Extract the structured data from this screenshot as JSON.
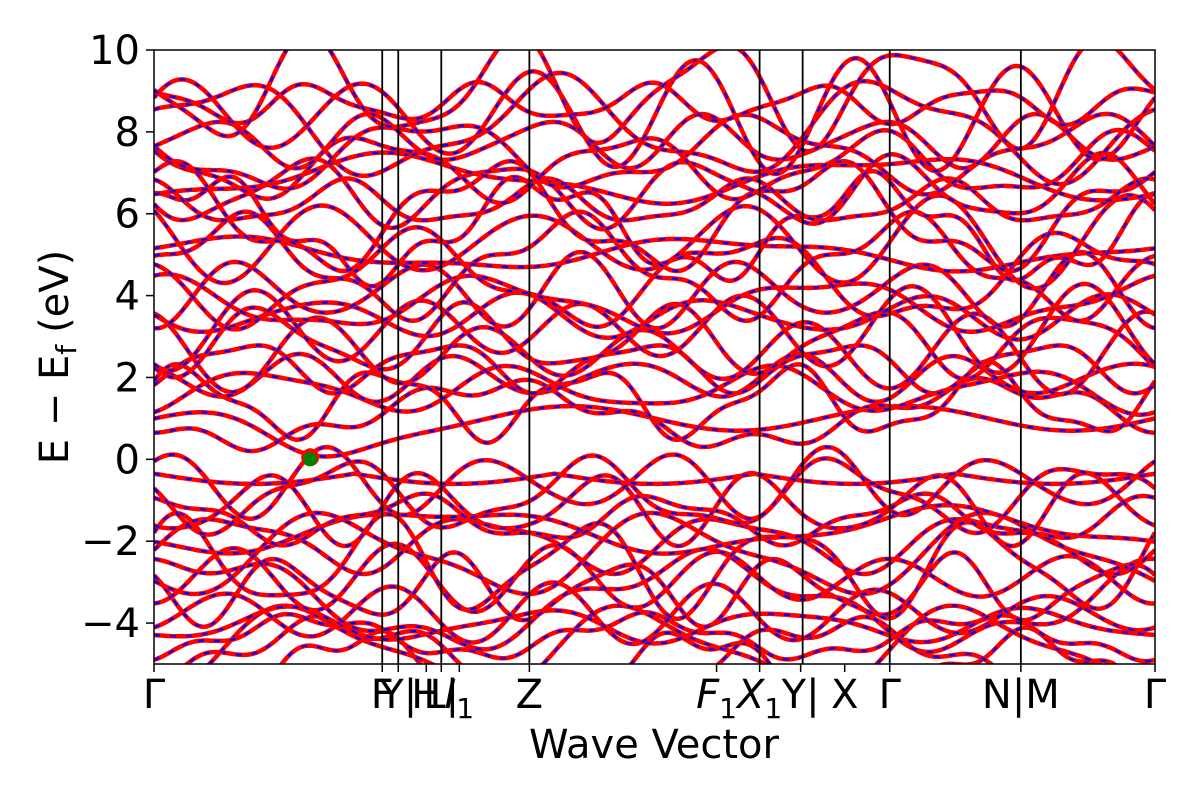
{
  "chart_data": {
    "type": "line",
    "title": "",
    "xlabel": "Wave Vector",
    "ylabel": "E − E_f (eV)",
    "ylabel_main": "E − E",
    "ylabel_sub": "f",
    "ylabel_unit": "(eV)",
    "ylim": [
      -5,
      10
    ],
    "yticks": [
      -4,
      -2,
      0,
      2,
      4,
      6,
      8,
      10
    ],
    "ytick_labels": [
      "−4",
      "−2",
      "0",
      "2",
      "4",
      "6",
      "8",
      "10"
    ],
    "x_range": [
      0,
      1
    ],
    "kpath": [
      {
        "pos": 0.0,
        "label": "Γ"
      },
      {
        "pos": 0.228,
        "label": "F"
      },
      {
        "pos": 0.244,
        "label": "Y|"
      },
      {
        "pos": 0.272,
        "label": "H"
      },
      {
        "pos": 0.287,
        "label": "L|"
      },
      {
        "pos": 0.305,
        "label": "I1"
      },
      {
        "pos": 0.375,
        "label": "Z"
      },
      {
        "pos": 0.562,
        "label": "F1"
      },
      {
        "pos": 0.605,
        "label": "X1"
      },
      {
        "pos": 0.646,
        "label": "Y|"
      },
      {
        "pos": 0.69,
        "label": "X"
      },
      {
        "pos": 0.735,
        "label": "Γ"
      },
      {
        "pos": 0.866,
        "label": "N|M"
      },
      {
        "pos": 1.0,
        "label": "Γ"
      }
    ],
    "vertical_lines": [
      0.228,
      0.244,
      0.287,
      0.375,
      0.605,
      0.648,
      0.735,
      0.866
    ],
    "series": [
      {
        "color": "#ff0000",
        "style": "solid"
      },
      {
        "color": "#0000ff",
        "style": "dashed"
      }
    ],
    "marker": {
      "x": 0.156,
      "y": 0.05,
      "color": "#008000"
    },
    "marker_ring": {
      "color": "#ff0000"
    },
    "band_count": 46
  }
}
